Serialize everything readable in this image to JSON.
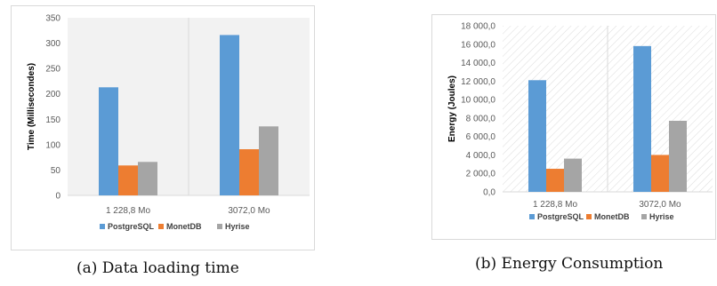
{
  "captions": {
    "a": "(a) Data loading time",
    "b": "(b) Energy Consumption"
  },
  "colors": {
    "PostgreSQL": "#5b9bd5",
    "MonetDB": "#ed7d31",
    "Hyrise": "#a5a5a5"
  },
  "chart_data": [
    {
      "type": "bar",
      "categories": [
        "1 228,8 Mo",
        "3072,0 Mo"
      ],
      "series": [
        {
          "name": "PostgreSQL",
          "values": [
            213,
            316
          ]
        },
        {
          "name": "MonetDB",
          "values": [
            59,
            91
          ]
        },
        {
          "name": "Hyrise",
          "values": [
            66,
            136
          ]
        }
      ],
      "ylabel": "Time (Millisecondes)",
      "ylim": [
        0,
        350
      ],
      "yticks": [
        "0",
        "50",
        "100",
        "150",
        "200",
        "250",
        "300",
        "350"
      ],
      "ytick_values": [
        0,
        50,
        100,
        150,
        200,
        250,
        300,
        350
      ],
      "plot_background": "light-gray",
      "legend": "bottom"
    },
    {
      "type": "bar",
      "categories": [
        "1 228,8 Mo",
        "3072,0 Mo"
      ],
      "series": [
        {
          "name": "PostgreSQL",
          "values": [
            12100,
            15800
          ]
        },
        {
          "name": "MonetDB",
          "values": [
            2500,
            4000
          ]
        },
        {
          "name": "Hyrise",
          "values": [
            3600,
            7700
          ]
        }
      ],
      "ylabel": "Energy (Joules)",
      "ylim": [
        0,
        18000
      ],
      "yticks": [
        "0,0",
        "2 000,0",
        "4 000,0",
        "6 000,0",
        "8 000,0",
        "10 000,0",
        "12 000,0",
        "14 000,0",
        "16 000,0",
        "18 000,0"
      ],
      "ytick_values": [
        0,
        2000,
        4000,
        6000,
        8000,
        10000,
        12000,
        14000,
        16000,
        18000
      ],
      "plot_background": "hatched",
      "legend": "bottom"
    }
  ]
}
